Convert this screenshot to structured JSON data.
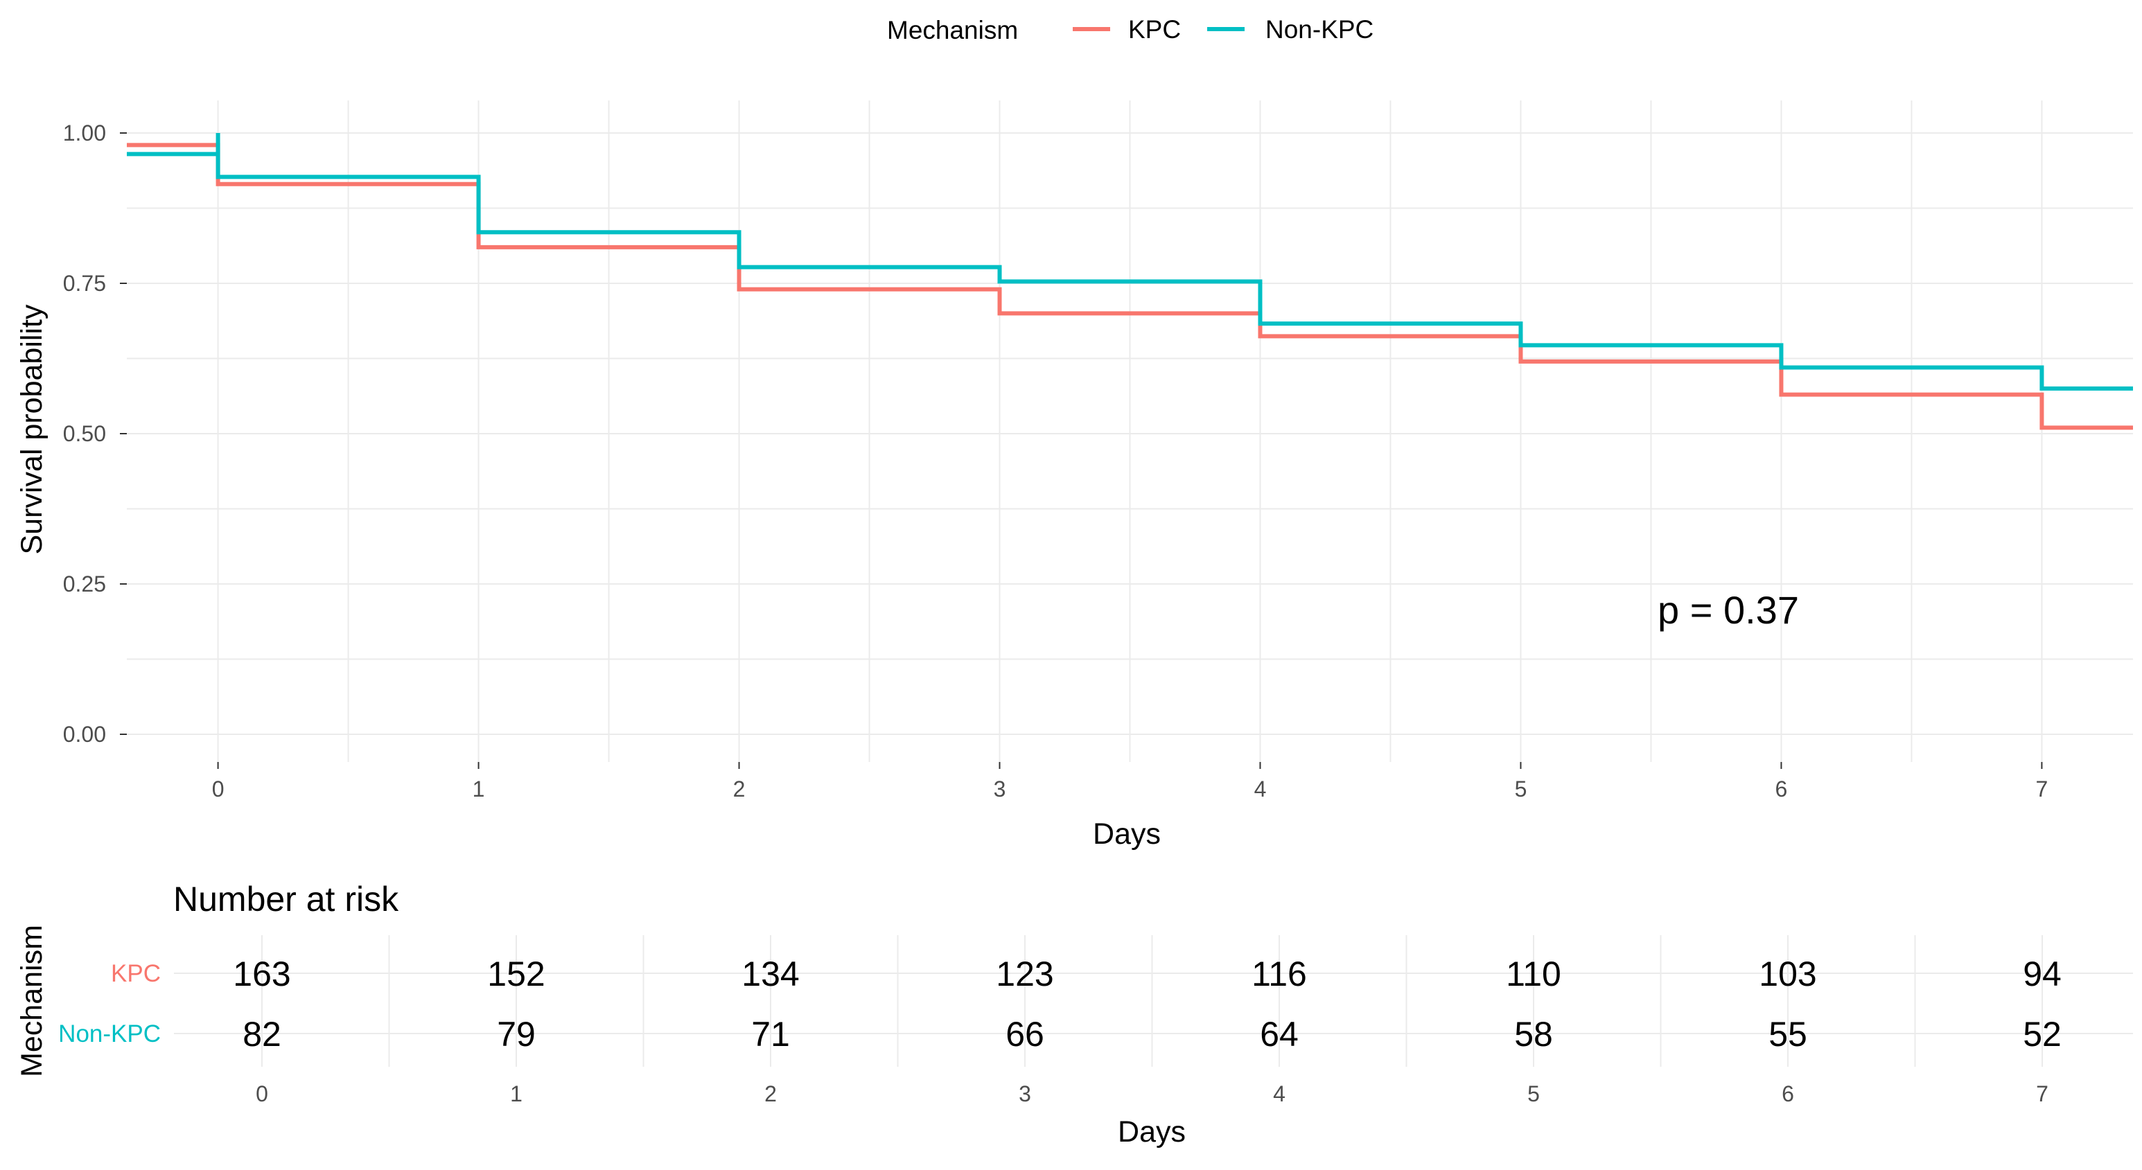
{
  "chart_data": [
    {
      "type": "line",
      "subtype": "kaplan-meier-step",
      "xlabel": "Days",
      "ylabel": "Survival probability",
      "x_ticks": [
        "0",
        "1",
        "2",
        "3",
        "4",
        "5",
        "6",
        "7"
      ],
      "y_ticks": [
        "0.00",
        "0.25",
        "0.50",
        "0.75",
        "1.00"
      ],
      "xlim": [
        -0.35,
        7.35
      ],
      "ylim": [
        0,
        1
      ],
      "grid": true,
      "legend": {
        "title": "Mechanism",
        "position": "top",
        "entries": [
          "KPC",
          "Non-KPC"
        ]
      },
      "annotation": "p = 0.37",
      "series": [
        {
          "name": "KPC",
          "color": "#F8766D",
          "points": [
            {
              "x": -0.35,
              "y": 0.98
            },
            {
              "x": 0,
              "y": 0.915
            },
            {
              "x": 1,
              "y": 0.81
            },
            {
              "x": 2,
              "y": 0.74
            },
            {
              "x": 3,
              "y": 0.7
            },
            {
              "x": 4,
              "y": 0.662
            },
            {
              "x": 5,
              "y": 0.62
            },
            {
              "x": 6,
              "y": 0.565
            },
            {
              "x": 7,
              "y": 0.51
            }
          ]
        },
        {
          "name": "Non-KPC",
          "color": "#00BFC4",
          "points": [
            {
              "x": -0.35,
              "y": 0.965
            },
            {
              "x": 0,
              "y": 1.0,
              "vertical_only": true
            },
            {
              "x": 0,
              "y": 0.927
            },
            {
              "x": 1,
              "y": 0.835
            },
            {
              "x": 2,
              "y": 0.777
            },
            {
              "x": 3,
              "y": 0.753
            },
            {
              "x": 4,
              "y": 0.683
            },
            {
              "x": 5,
              "y": 0.647
            },
            {
              "x": 6,
              "y": 0.61
            },
            {
              "x": 7,
              "y": 0.575
            }
          ]
        }
      ]
    },
    {
      "type": "table",
      "title": "Number at risk",
      "xlabel": "Days",
      "ylabel": "Mechanism",
      "x_ticks": [
        "0",
        "1",
        "2",
        "3",
        "4",
        "5",
        "6",
        "7"
      ],
      "rows": [
        {
          "name": "KPC",
          "color": "#F8766D",
          "values": [
            163,
            152,
            134,
            123,
            116,
            110,
            103,
            94
          ]
        },
        {
          "name": "Non-KPC",
          "color": "#00BFC4",
          "values": [
            82,
            79,
            71,
            66,
            64,
            58,
            55,
            52
          ]
        }
      ]
    }
  ]
}
